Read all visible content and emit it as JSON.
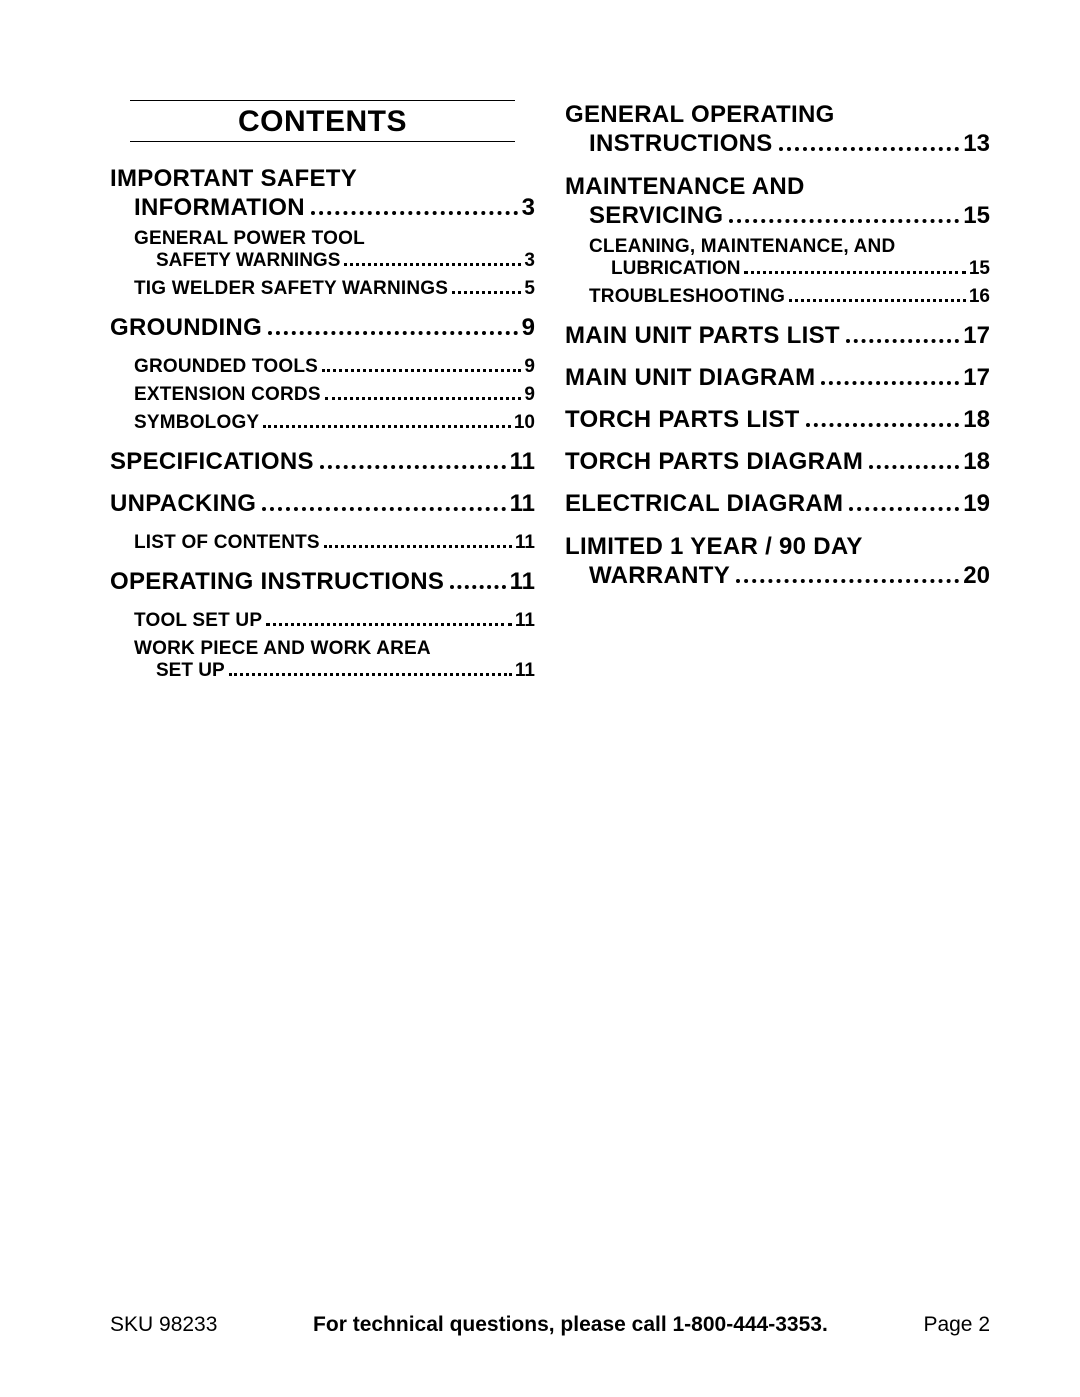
{
  "title": "CONTENTS",
  "left": [
    {
      "type": "section2",
      "line1": "IMPORTANT SAFETY",
      "line2": "INFORMATION",
      "page": "3",
      "subs": [
        {
          "type": "sub2",
          "line1": "GENERAL POWER TOOL",
          "line2": "SAFETY WARNINGS",
          "page": "3"
        },
        {
          "type": "sub1",
          "text": "TIG WELDER SAFETY WARNINGS",
          "page": "5",
          "tight": true
        }
      ]
    },
    {
      "type": "section1",
      "text": "GROUNDING",
      "page": "9",
      "subs": [
        {
          "type": "sub1",
          "text": "GROUNDED TOOLS",
          "page": "9"
        },
        {
          "type": "sub1",
          "text": "EXTENSION CORDS",
          "page": "9"
        },
        {
          "type": "sub1",
          "text": "SYMBOLOGY",
          "page": "10"
        }
      ]
    },
    {
      "type": "section1",
      "text": "SPECIFICATIONS",
      "page": "11",
      "subs": []
    },
    {
      "type": "section1",
      "text": "UNPACKING",
      "page": "11",
      "subs": [
        {
          "type": "sub1",
          "text": "LIST OF CONTENTS",
          "page": "11"
        }
      ]
    },
    {
      "type": "section1",
      "text": "OPERATING INSTRUCTIONS",
      "page": "11",
      "subs": [
        {
          "type": "sub1",
          "text": "TOOL SET UP",
          "page": "11"
        },
        {
          "type": "sub2",
          "line1": "WORK PIECE AND WORK AREA",
          "line2": "SET UP",
          "page": "11"
        }
      ]
    }
  ],
  "right": [
    {
      "type": "section2",
      "line1": "GENERAL OPERATING",
      "line2": "INSTRUCTIONS",
      "page": "13",
      "subs": []
    },
    {
      "type": "section2",
      "line1": "MAINTENANCE AND",
      "line2": "SERVICING",
      "page": "15",
      "subs": [
        {
          "type": "sub2",
          "line1": "CLEANING, MAINTENANCE, AND",
          "line2": "LUBRICATION",
          "page": "15"
        },
        {
          "type": "sub1",
          "text": "TROUBLESHOOTING",
          "page": "16"
        }
      ]
    },
    {
      "type": "section1",
      "text": "MAIN UNIT PARTS LIST",
      "page": "17",
      "subs": []
    },
    {
      "type": "section1",
      "text": "MAIN UNIT DIAGRAM",
      "page": "17",
      "subs": []
    },
    {
      "type": "section1",
      "text": "TORCH PARTS LIST",
      "page": "18",
      "subs": []
    },
    {
      "type": "section1",
      "text": "TORCH PARTS DIAGRAM",
      "page": "18",
      "subs": []
    },
    {
      "type": "section1",
      "text": "ELECTRICAL DIAGRAM",
      "page": "19",
      "subs": []
    },
    {
      "type": "section2",
      "line1": "LIMITED 1 YEAR / 90 DAY",
      "line2": "WARRANTY",
      "page": "20",
      "subs": []
    }
  ],
  "footer": {
    "sku": "SKU 98233",
    "mid": "For technical questions, please call 1-800-444-3353.",
    "page": "Page 2"
  }
}
